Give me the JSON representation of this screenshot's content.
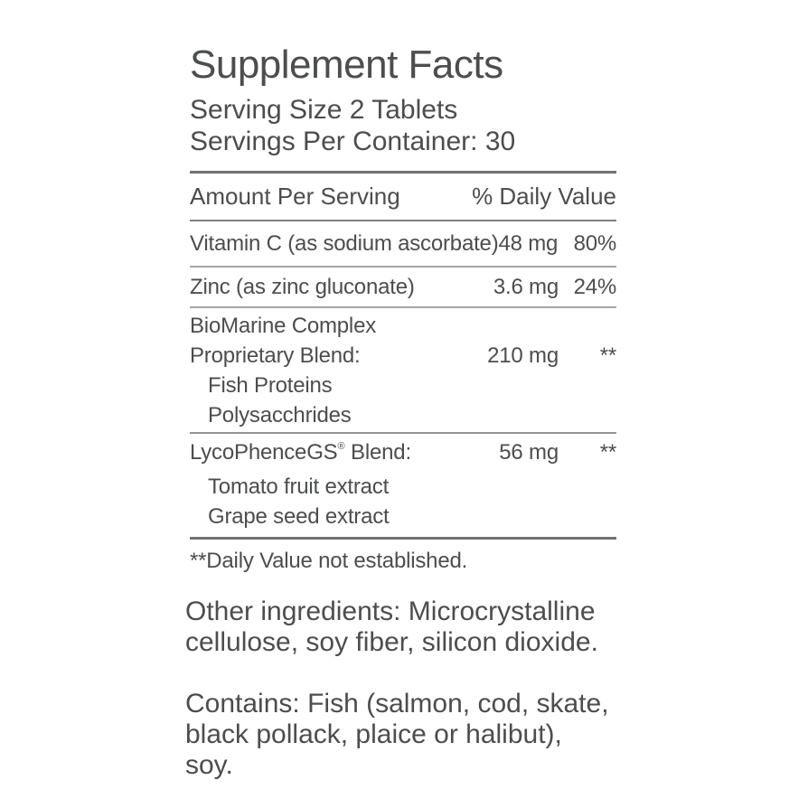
{
  "label": {
    "title": "Supplement Facts",
    "serving_size": "Serving Size 2 Tablets",
    "servings_per_container": "Servings Per Container: 30",
    "columns": {
      "amount_header": "Amount Per Serving",
      "dv_header": "% Daily Value"
    },
    "rows": [
      {
        "name": "Vitamin C (as sodium ascorbate)",
        "amount": "48 mg",
        "dv": "80%"
      },
      {
        "name": "Zinc (as zinc gluconate)",
        "amount": "3.6 mg",
        "dv": "24%"
      },
      {
        "name_line1": "BioMarine Complex",
        "name_line2": "Proprietary Blend:",
        "amount": "210 mg",
        "dv": "**",
        "sub_items": [
          "Fish Proteins",
          "Polysacchrides"
        ]
      },
      {
        "name_base": "LycoPhenceGS",
        "trademark": "®",
        "name_rest": " Blend:",
        "amount": "56 mg",
        "dv": "**",
        "sub_items": [
          "Tomato fruit extract",
          "Grape seed extract"
        ]
      }
    ],
    "footnote": "**Daily Value not established."
  },
  "other_ingredients": {
    "lines": [
      "Other ingredients: Microcrystalline",
      "cellulose, soy fiber, silicon dioxide."
    ]
  },
  "contains": {
    "lines": [
      "Contains: Fish (salmon, cod, skate,",
      "black pollack, plaice or halibut),",
      "soy."
    ]
  },
  "colors": {
    "text": "#4b4d4f",
    "rule_dark": "#707375",
    "rule_medium": "#7d8082",
    "rule_light": "#a3a5a7",
    "rule_soft": "#919395",
    "background": "#ffffff"
  }
}
